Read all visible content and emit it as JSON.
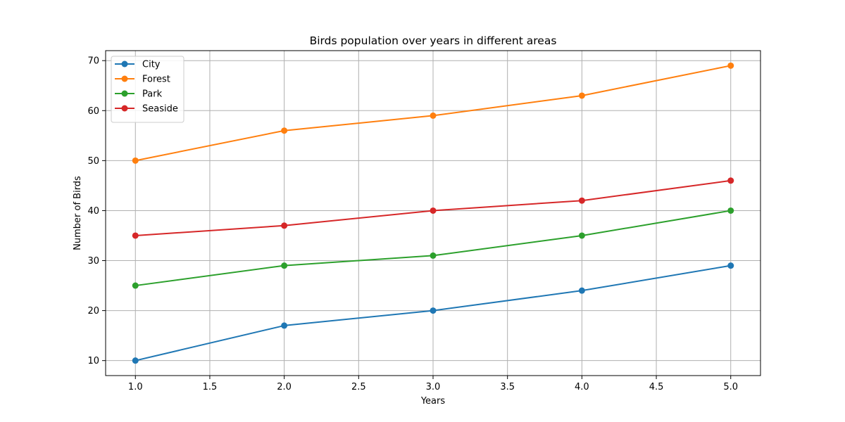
{
  "chart_data": {
    "type": "line",
    "title": "Birds population over years in different areas",
    "xlabel": "Years",
    "ylabel": "Number of Birds",
    "x": [
      1.0,
      2.0,
      3.0,
      4.0,
      5.0
    ],
    "xlim": [
      0.8,
      5.2
    ],
    "ylim": [
      7,
      72
    ],
    "x_ticks": [
      1.0,
      1.5,
      2.0,
      2.5,
      3.0,
      3.5,
      4.0,
      4.5,
      5.0
    ],
    "x_tick_labels": [
      "1.0",
      "1.5",
      "2.0",
      "2.5",
      "3.0",
      "3.5",
      "4.0",
      "4.5",
      "5.0"
    ],
    "y_ticks": [
      10,
      20,
      30,
      40,
      50,
      60,
      70
    ],
    "y_tick_labels": [
      "10",
      "20",
      "30",
      "40",
      "50",
      "60",
      "70"
    ],
    "grid": true,
    "legend_position": "top-left",
    "series": [
      {
        "name": "City",
        "color": "#1f77b4",
        "values": [
          10,
          17,
          20,
          24,
          29
        ]
      },
      {
        "name": "Forest",
        "color": "#ff7f0e",
        "values": [
          50,
          56,
          59,
          63,
          69
        ]
      },
      {
        "name": "Park",
        "color": "#2ca02c",
        "values": [
          25,
          29,
          31,
          35,
          40
        ]
      },
      {
        "name": "Seaside",
        "color": "#d62728",
        "values": [
          35,
          37,
          40,
          42,
          46
        ]
      }
    ]
  }
}
